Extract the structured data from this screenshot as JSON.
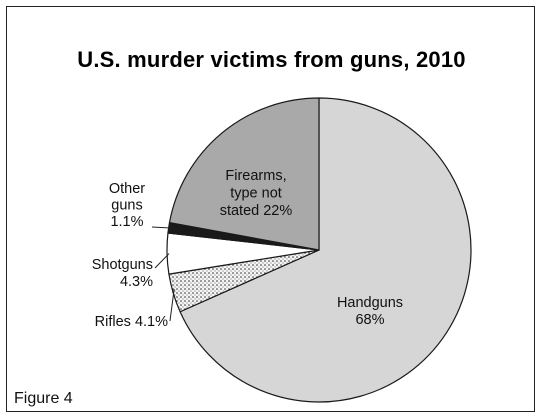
{
  "chart_data": {
    "type": "pie",
    "title": "U.S. murder victims from guns, 2010",
    "caption": "Figure 4",
    "start": "12 o'clock, clockwise",
    "slices": [
      {
        "name": "Handguns",
        "value": 68,
        "label_lines": [
          "Handguns",
          "68%"
        ],
        "color": "#d6d6d6"
      },
      {
        "name": "Rifles",
        "value": 4.1,
        "label_lines": [
          "Rifles 4.1%"
        ],
        "color": "#efefef",
        "pattern": "stipple"
      },
      {
        "name": "Shotguns",
        "value": 4.3,
        "label_lines": [
          "Shotguns",
          "4.3%"
        ],
        "color": "#ffffff"
      },
      {
        "name": "Other guns",
        "value": 1.1,
        "label_lines": [
          "Other",
          "guns",
          "1.1%"
        ],
        "color": "#1a1a1a"
      },
      {
        "name": "Firearms, type not stated",
        "value": 22,
        "label_lines": [
          "Firearms,",
          "type not",
          "stated 22%"
        ],
        "color": "#a9a9a9"
      }
    ]
  }
}
